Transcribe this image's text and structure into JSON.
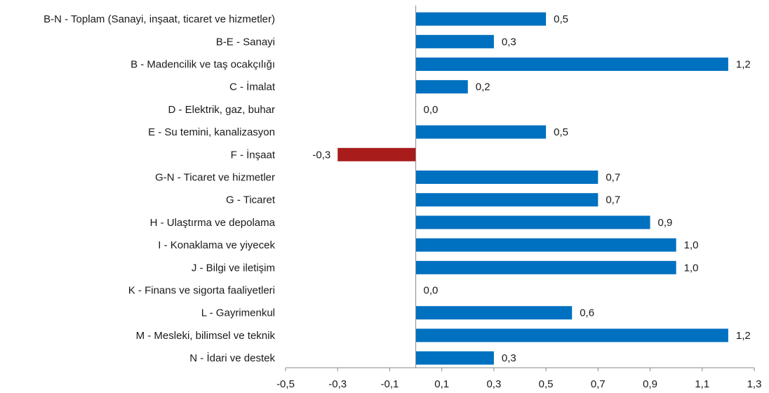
{
  "chart_data": {
    "type": "bar",
    "orientation": "horizontal",
    "categories": [
      "B-N - Toplam (Sanayi, inşaat, ticaret ve hizmetler)",
      "B-E - Sanayi",
      "B - Madencilik ve taş ocakçılığı",
      "C - İmalat",
      "D - Elektrik, gaz, buhar",
      "E - Su temini, kanalizasyon",
      "F - İnşaat",
      "G-N - Ticaret ve hizmetler",
      "G - Ticaret",
      "H - Ulaştırma ve depolama",
      "I - Konaklama ve yiyecek",
      "J - Bilgi ve iletişim",
      "K - Finans ve sigorta faaliyetleri",
      "L - Gayrimenkul",
      "M - Mesleki, bilimsel ve teknik",
      "N - İdari ve destek"
    ],
    "values": [
      0.5,
      0.3,
      1.2,
      0.2,
      0.0,
      0.5,
      -0.3,
      0.7,
      0.7,
      0.9,
      1.0,
      1.0,
      0.0,
      0.6,
      1.2,
      0.3
    ],
    "value_labels": [
      "0,5",
      "0,3",
      "1,2",
      "0,2",
      "0,0",
      "0,5",
      "-0,3",
      "0,7",
      "0,7",
      "0,9",
      "1,0",
      "1,0",
      "0,0",
      "0,6",
      "1,2",
      "0,3"
    ],
    "xlim": [
      -0.5,
      1.3
    ],
    "x_ticks": [
      -0.5,
      -0.3,
      -0.1,
      0.1,
      0.3,
      0.5,
      0.7,
      0.9,
      1.1,
      1.3
    ],
    "x_tick_labels": [
      "-0,5",
      "-0,3",
      "-0,1",
      "0,1",
      "0,3",
      "0,5",
      "0,7",
      "0,9",
      "1,1",
      "1,3"
    ],
    "colors": {
      "positive": "#0070C0",
      "negative": "#A81C1C",
      "axis": "#888888"
    },
    "grid": false,
    "legend": "none"
  }
}
